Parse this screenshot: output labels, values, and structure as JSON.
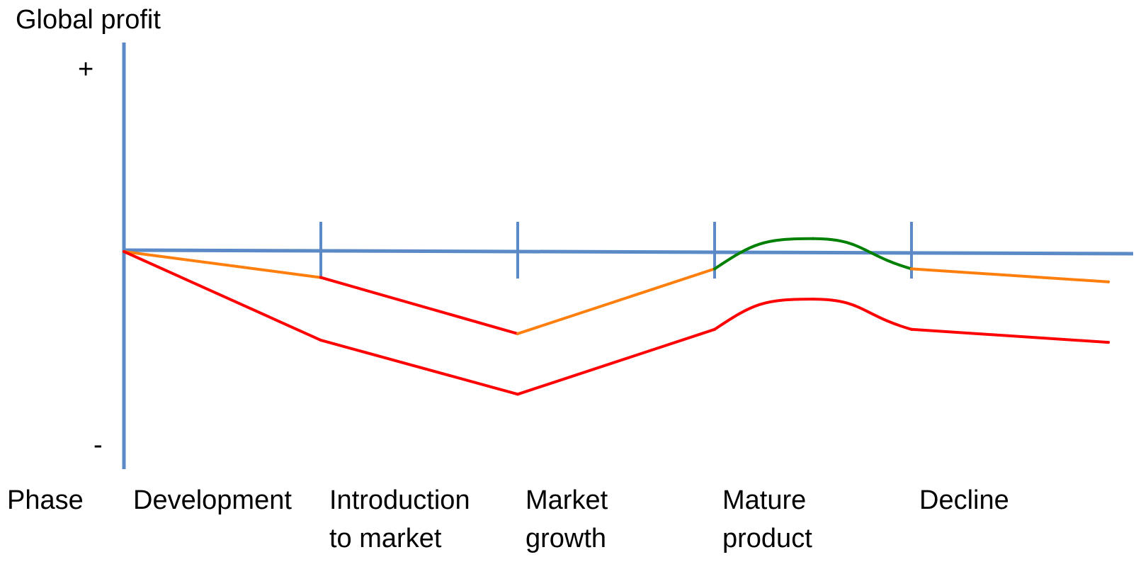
{
  "chart_data": {
    "type": "line",
    "title": "",
    "ylabel": "Global profit",
    "xlabel": "Phase",
    "y_tick_labels": {
      "top": "+",
      "bottom": "-"
    },
    "categories": [
      {
        "lines": [
          "Development"
        ]
      },
      {
        "lines": [
          "Introduction",
          "to market"
        ]
      },
      {
        "lines": [
          "Market",
          "growth"
        ]
      },
      {
        "lines": [
          "Mature",
          "product"
        ]
      },
      {
        "lines": [
          "Decline"
        ]
      }
    ],
    "x": [
      0,
      1,
      2,
      3,
      3.5,
      4,
      5
    ],
    "ylim": [
      -1.0,
      1.0
    ],
    "grid": false,
    "legend": "none",
    "series": [
      {
        "values": [
          0.0,
          -0.12,
          -0.38,
          -0.08,
          0.06,
          -0.08,
          -0.14
        ],
        "segment_colors": [
          "#ff7f0e",
          "#ff0000",
          "#ff7f0e",
          "#008000",
          "#008000",
          "#ff7f0e"
        ]
      },
      {
        "values": [
          0.0,
          -0.41,
          -0.66,
          -0.36,
          -0.22,
          -0.36,
          -0.42
        ],
        "segment_colors": [
          "#ff0000",
          "#ff0000",
          "#ff0000",
          "#ff0000",
          "#ff0000",
          "#ff0000"
        ]
      }
    ],
    "colors": {
      "axis": "#5b8ac6",
      "orange": "#ff7f0e",
      "red": "#ff0000",
      "green": "#008000"
    }
  }
}
